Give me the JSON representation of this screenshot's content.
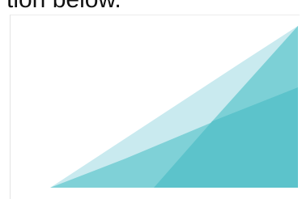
{
  "caption": "tion below."
}
